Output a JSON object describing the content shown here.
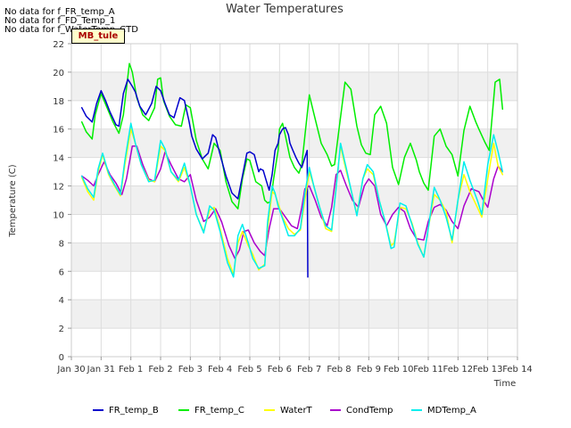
{
  "nodata_messages": [
    "No data for f_FR_temp_A",
    "No data for f_FD_Temp_1",
    "No data for f_WaterTemp_CTD"
  ],
  "site_label": "MB_tule",
  "chart_data": {
    "type": "line",
    "title": "Water Temperatures",
    "xlabel": "Time",
    "ylabel": "Temperature (C)",
    "xlim": [
      0,
      15
    ],
    "ylim": [
      0,
      22
    ],
    "yticks": [
      0,
      2,
      4,
      6,
      8,
      10,
      12,
      14,
      16,
      18,
      20,
      22
    ],
    "xtick_labels": [
      "Jan 30",
      "Jan 31",
      "Feb 1",
      "Feb 2",
      "Feb 3",
      "Feb 4",
      "Feb 5",
      "Feb 6",
      "Feb 7",
      "Feb 8",
      "Feb 9",
      "Feb 10",
      "Feb 11",
      "Feb 12",
      "Feb 13",
      "Feb 14"
    ],
    "grid": true,
    "legend_position": "bottom",
    "series": [
      {
        "name": "FR_temp_B",
        "color": "#0000cc",
        "x": [
          0.35,
          0.5,
          0.7,
          0.85,
          1.0,
          1.15,
          1.3,
          1.5,
          1.6,
          1.75,
          1.9,
          2.05,
          2.15,
          2.3,
          2.5,
          2.7,
          2.85,
          3.0,
          3.15,
          3.3,
          3.45,
          3.65,
          3.8,
          3.95,
          4.05,
          4.2,
          4.4,
          4.6,
          4.75,
          4.85,
          5.0,
          5.2,
          5.4,
          5.6,
          5.75,
          5.9,
          6.0,
          6.15,
          6.3,
          6.35,
          6.45,
          6.55,
          6.65,
          6.75,
          6.85,
          6.95,
          7.0,
          7.1,
          7.2,
          7.3,
          7.35,
          7.45,
          7.55,
          7.65,
          7.75,
          7.85,
          7.93,
          7.95
        ],
        "y": [
          17.5,
          16.9,
          16.5,
          17.8,
          18.7,
          18.0,
          17.2,
          16.3,
          16.2,
          18.5,
          19.5,
          19.0,
          18.6,
          17.6,
          17.0,
          17.8,
          19.0,
          18.7,
          17.8,
          17.0,
          16.8,
          18.2,
          18.0,
          16.6,
          15.5,
          14.6,
          13.9,
          14.3,
          15.6,
          15.4,
          14.2,
          12.7,
          11.5,
          11.1,
          12.7,
          14.3,
          14.4,
          14.2,
          13.0,
          13.2,
          13.1,
          12.4,
          11.7,
          12.8,
          14.5,
          15.0,
          15.6,
          16.0,
          16.1,
          15.6,
          15.0,
          14.5,
          14.0,
          13.6,
          13.3,
          14.0,
          14.5,
          5.6
        ]
      },
      {
        "name": "FR_temp_C",
        "color": "#00ee00",
        "x": [
          0.35,
          0.5,
          0.7,
          0.8,
          1.0,
          1.2,
          1.4,
          1.6,
          1.75,
          1.95,
          2.05,
          2.2,
          2.4,
          2.6,
          2.8,
          2.9,
          3.0,
          3.1,
          3.3,
          3.5,
          3.7,
          3.85,
          4.0,
          4.2,
          4.4,
          4.6,
          4.8,
          5.0,
          5.2,
          5.4,
          5.6,
          5.75,
          5.9,
          6.0,
          6.2,
          6.4,
          6.5,
          6.6,
          6.7,
          6.8,
          6.95,
          7.0,
          7.1,
          7.2,
          7.35,
          7.5,
          7.65,
          7.75,
          7.85,
          8.0,
          8.2,
          8.4,
          8.6,
          8.75,
          8.85,
          9.0,
          9.2,
          9.4,
          9.6,
          9.75,
          9.9,
          10.05,
          10.2,
          10.4,
          10.6,
          10.8,
          11.0,
          11.2,
          11.4,
          11.6,
          11.7,
          11.85,
          12.0,
          12.2,
          12.4,
          12.6,
          12.8,
          13.0,
          13.2,
          13.4,
          13.6,
          13.7,
          13.9,
          14.05,
          14.25,
          14.4,
          14.5
        ],
        "y": [
          16.5,
          15.8,
          15.3,
          17.0,
          18.5,
          17.5,
          16.5,
          15.7,
          17.0,
          20.6,
          20.0,
          18.2,
          17.0,
          16.6,
          17.5,
          19.5,
          19.6,
          18.0,
          16.9,
          16.3,
          16.2,
          17.7,
          17.5,
          15.2,
          13.9,
          13.2,
          15.0,
          14.5,
          12.3,
          10.9,
          10.4,
          12.5,
          13.9,
          13.8,
          12.3,
          12.0,
          11.0,
          10.8,
          10.9,
          12.5,
          14.5,
          16.0,
          16.4,
          15.5,
          14.0,
          13.3,
          12.9,
          13.5,
          15.5,
          18.4,
          16.7,
          15.0,
          14.2,
          13.4,
          13.5,
          16.0,
          19.3,
          18.8,
          16.2,
          14.9,
          14.3,
          14.2,
          17.0,
          17.6,
          16.4,
          13.3,
          12.1,
          14.0,
          15.0,
          13.8,
          13.0,
          12.2,
          11.7,
          15.5,
          16.0,
          14.8,
          14.2,
          12.7,
          15.9,
          17.6,
          16.5,
          16.0,
          15.1,
          14.5,
          19.3,
          19.5,
          17.4
        ]
      },
      {
        "name": "WaterT",
        "color": "#ffff00",
        "x": [
          0.35,
          0.55,
          0.75,
          0.9,
          1.05,
          1.25,
          1.45,
          1.65,
          1.8,
          2.0,
          2.15,
          2.35,
          2.6,
          2.8,
          3.0,
          3.15,
          3.35,
          3.6,
          3.8,
          4.0,
          4.2,
          4.45,
          4.65,
          4.8,
          5.0,
          5.25,
          5.45,
          5.6,
          5.75,
          5.95,
          6.1,
          6.3,
          6.5,
          6.6,
          6.75,
          6.85,
          6.95,
          7.1,
          7.3,
          7.5,
          7.7,
          7.85,
          8.0,
          8.15,
          8.35,
          8.55,
          8.75,
          8.9,
          9.05,
          9.25,
          9.45,
          9.6,
          9.8,
          9.95,
          10.15,
          10.35,
          10.55,
          10.75,
          10.85,
          11.05,
          11.25,
          11.45,
          11.65,
          11.85,
          12.0,
          12.2,
          12.4,
          12.6,
          12.8,
          13.0,
          13.2,
          13.4,
          13.65,
          13.8,
          14.0,
          14.2,
          14.35,
          14.5
        ],
        "y": [
          12.6,
          11.6,
          11.0,
          13.0,
          14.2,
          12.8,
          12.0,
          11.3,
          13.5,
          16.0,
          15.0,
          13.5,
          12.4,
          12.3,
          14.8,
          14.5,
          13.0,
          12.3,
          13.3,
          12.0,
          10.0,
          8.8,
          10.3,
          10.5,
          9.0,
          6.9,
          5.8,
          8.0,
          8.8,
          7.8,
          7.2,
          6.1,
          6.5,
          9.0,
          11.6,
          11.4,
          10.8,
          9.8,
          9.0,
          8.6,
          8.9,
          11.0,
          13.0,
          12.0,
          10.5,
          9.0,
          8.8,
          12.0,
          14.8,
          13.0,
          11.3,
          10.0,
          12.5,
          13.2,
          12.8,
          11.0,
          9.5,
          7.8,
          8.0,
          10.5,
          10.4,
          9.4,
          8.0,
          7.0,
          9.0,
          11.4,
          11.0,
          10.2,
          8.0,
          11.0,
          12.8,
          11.6,
          10.5,
          9.8,
          12.5,
          15.0,
          13.4,
          12.8
        ]
      },
      {
        "name": "CondTemp",
        "color": "#aa00cc",
        "x": [
          0.35,
          0.55,
          0.75,
          0.9,
          1.1,
          1.3,
          1.5,
          1.7,
          1.85,
          2.05,
          2.2,
          2.4,
          2.6,
          2.8,
          3.0,
          3.15,
          3.35,
          3.6,
          3.8,
          4.0,
          4.2,
          4.45,
          4.65,
          4.85,
          5.05,
          5.3,
          5.5,
          5.65,
          5.8,
          5.95,
          6.15,
          6.35,
          6.5,
          6.65,
          6.8,
          7.0,
          7.2,
          7.4,
          7.6,
          7.75,
          7.85,
          8.0,
          8.2,
          8.4,
          8.6,
          8.75,
          8.9,
          9.05,
          9.25,
          9.45,
          9.65,
          9.85,
          10.0,
          10.2,
          10.4,
          10.6,
          10.8,
          11.0,
          11.2,
          11.4,
          11.6,
          11.85,
          12.0,
          12.2,
          12.4,
          12.6,
          12.8,
          13.0,
          13.2,
          13.45,
          13.7,
          13.85,
          14.0,
          14.2,
          14.35,
          14.5
        ],
        "y": [
          12.7,
          12.4,
          12.0,
          12.8,
          13.7,
          12.8,
          12.2,
          11.4,
          12.5,
          14.8,
          14.8,
          13.5,
          12.5,
          12.3,
          13.2,
          14.4,
          13.5,
          12.5,
          12.3,
          12.8,
          11.0,
          9.5,
          9.8,
          10.4,
          9.5,
          7.8,
          6.9,
          7.5,
          8.8,
          8.9,
          8.0,
          7.4,
          7.1,
          9.0,
          10.4,
          10.4,
          9.8,
          9.2,
          9.0,
          10.5,
          11.8,
          12.0,
          11.0,
          9.8,
          9.2,
          10.5,
          12.8,
          13.1,
          12.0,
          11.0,
          10.5,
          12.0,
          12.5,
          12.0,
          10.0,
          9.2,
          10.0,
          10.5,
          10.2,
          9.0,
          8.3,
          8.2,
          9.5,
          10.5,
          10.7,
          10.3,
          9.5,
          9.0,
          10.6,
          11.8,
          11.6,
          11.0,
          10.5,
          12.5,
          13.4,
          13.0
        ]
      },
      {
        "name": "MDTemp_A",
        "color": "#00eeee",
        "x": [
          0.35,
          0.55,
          0.75,
          0.9,
          1.05,
          1.25,
          1.45,
          1.65,
          1.8,
          2.0,
          2.15,
          2.35,
          2.6,
          2.8,
          3.0,
          3.15,
          3.35,
          3.6,
          3.8,
          4.0,
          4.2,
          4.45,
          4.65,
          4.8,
          5.0,
          5.25,
          5.45,
          5.6,
          5.75,
          5.95,
          6.1,
          6.3,
          6.5,
          6.6,
          6.75,
          6.85,
          6.95,
          7.1,
          7.3,
          7.5,
          7.7,
          7.85,
          8.0,
          8.15,
          8.35,
          8.55,
          8.75,
          8.9,
          9.05,
          9.25,
          9.45,
          9.6,
          9.8,
          9.95,
          10.15,
          10.35,
          10.55,
          10.75,
          10.85,
          11.05,
          11.25,
          11.45,
          11.65,
          11.85,
          12.0,
          12.2,
          12.4,
          12.6,
          12.8,
          13.0,
          13.2,
          13.4,
          13.65,
          13.8,
          14.0,
          14.2,
          14.35,
          14.5
        ],
        "y": [
          12.7,
          11.8,
          11.2,
          13.2,
          14.3,
          12.9,
          12.1,
          11.4,
          13.8,
          16.4,
          15.0,
          13.5,
          12.3,
          12.4,
          15.2,
          14.6,
          13.0,
          12.4,
          13.6,
          12.0,
          10.0,
          8.7,
          10.6,
          10.3,
          8.8,
          6.6,
          5.6,
          8.5,
          9.3,
          8.0,
          6.9,
          6.2,
          6.4,
          9.5,
          12.0,
          11.5,
          10.6,
          9.7,
          8.5,
          8.5,
          9.0,
          11.5,
          13.3,
          12.0,
          10.5,
          9.2,
          8.9,
          11.8,
          15.0,
          13.2,
          11.3,
          9.9,
          12.5,
          13.5,
          13.0,
          11.0,
          9.5,
          7.6,
          7.7,
          10.8,
          10.6,
          9.3,
          7.9,
          7.0,
          9.0,
          11.9,
          11.0,
          9.8,
          8.2,
          11.0,
          13.7,
          12.4,
          11.0,
          10.0,
          13.5,
          15.6,
          14.4,
          13.0
        ]
      }
    ]
  }
}
